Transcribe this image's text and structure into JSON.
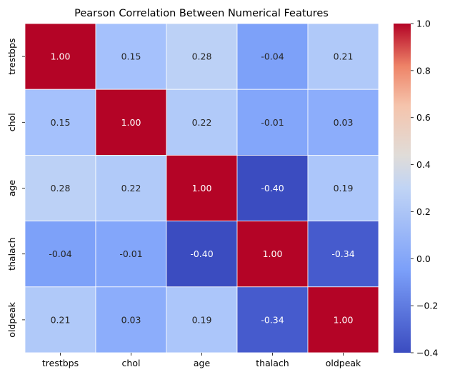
{
  "chart_data": {
    "type": "heatmap",
    "title": "Pearson Correlation Between Numerical Features",
    "rows": [
      "trestbps",
      "chol",
      "age",
      "thalach",
      "oldpeak"
    ],
    "cols": [
      "trestbps",
      "chol",
      "age",
      "thalach",
      "oldpeak"
    ],
    "values": [
      [
        1.0,
        0.15,
        0.28,
        -0.04,
        0.21
      ],
      [
        0.15,
        1.0,
        0.22,
        -0.01,
        0.03
      ],
      [
        0.28,
        0.22,
        1.0,
        -0.4,
        0.19
      ],
      [
        -0.04,
        -0.01,
        -0.4,
        1.0,
        -0.34
      ],
      [
        0.21,
        0.03,
        0.19,
        -0.34,
        1.0
      ]
    ],
    "colormap": "coolwarm",
    "vmin": -0.4,
    "vmax": 1.0,
    "colorbar_ticks": [
      "1.0",
      "0.8",
      "0.6",
      "0.4",
      "0.2",
      "0.0",
      "−0.2",
      "−0.4"
    ],
    "colorbar_tick_values": [
      1.0,
      0.8,
      0.6,
      0.4,
      0.2,
      0.0,
      -0.2,
      -0.4
    ],
    "annotation_format": "2 decimals",
    "xlabel": "",
    "ylabel": ""
  }
}
